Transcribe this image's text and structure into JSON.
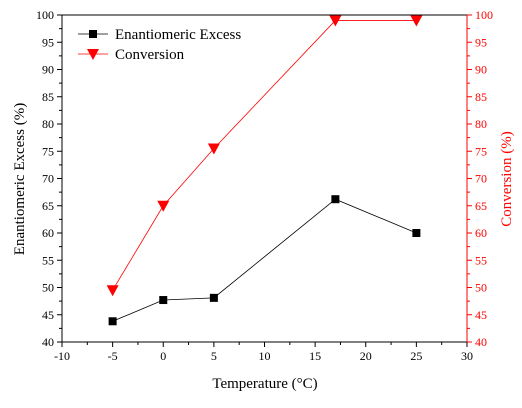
{
  "chart_data": {
    "type": "line",
    "title": "",
    "xlabel": "Temperature (°C)",
    "ylabel": "Enantiomeric Excess (%)",
    "y2label": "Conversion (%)",
    "xlim": [
      -10,
      30
    ],
    "ylim": [
      40,
      100
    ],
    "y2lim": [
      40,
      100
    ],
    "x_ticks": [
      -10,
      -5,
      0,
      5,
      10,
      15,
      20,
      25,
      30
    ],
    "y_ticks": [
      40,
      45,
      50,
      55,
      60,
      65,
      70,
      75,
      80,
      85,
      90,
      95,
      100
    ],
    "y2_ticks": [
      40,
      45,
      50,
      55,
      60,
      65,
      70,
      75,
      80,
      85,
      90,
      95,
      100
    ],
    "grid": false,
    "legend_position": "top-left",
    "series": [
      {
        "name": "Enantiomeric Excess",
        "axis": "left",
        "marker": "square",
        "color": "#000000",
        "x": [
          -5,
          0,
          5,
          17,
          25
        ],
        "values": [
          43.8,
          47.7,
          48.1,
          66.2,
          60.0
        ]
      },
      {
        "name": "Conversion",
        "axis": "right",
        "marker": "triangle-down",
        "color": "#ff0000",
        "x": [
          -5,
          0,
          5,
          17,
          25
        ],
        "values": [
          49.5,
          65.0,
          75.5,
          99.0,
          99.0
        ]
      }
    ]
  }
}
